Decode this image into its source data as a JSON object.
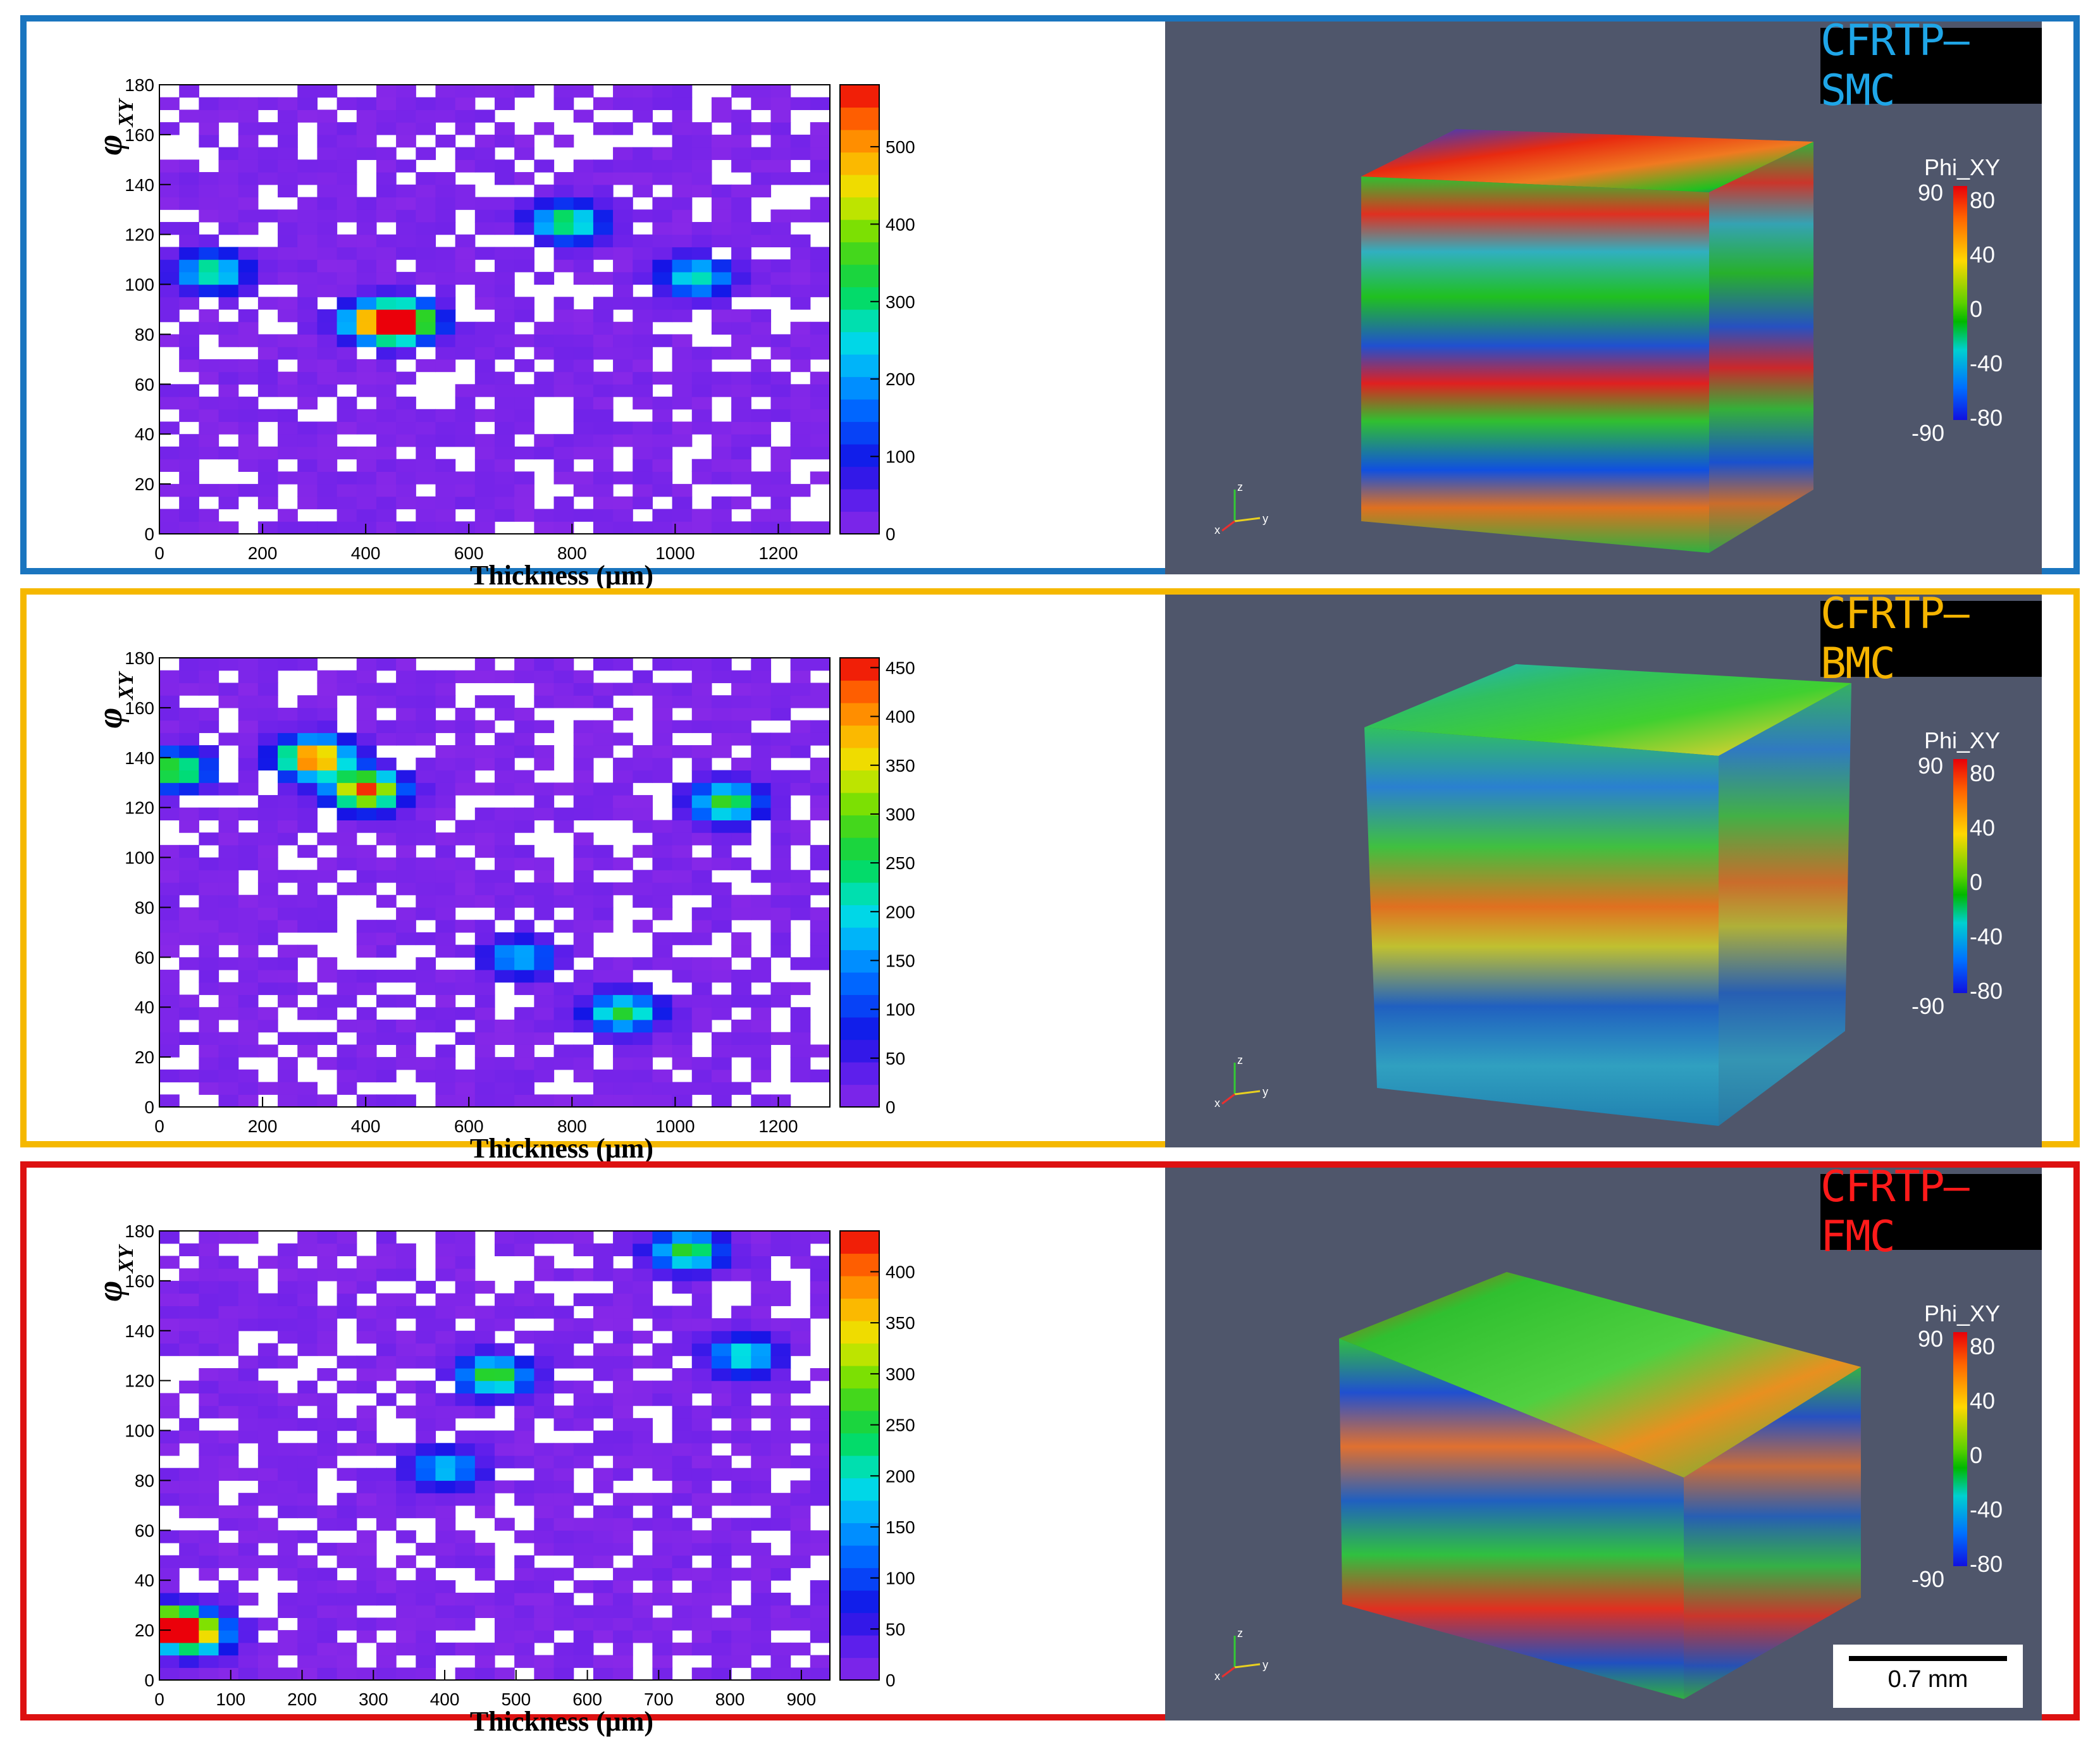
{
  "panels": [
    {
      "id": "smc",
      "title": "CFRTP—SMC",
      "title_color": "#1fa6e8",
      "border_color": "#1a75bf",
      "colorbar": {
        "title": "Phi_XY",
        "max": "90",
        "min": "-90",
        "ticks": [
          "80",
          "40",
          "0",
          "-40",
          "-80"
        ]
      },
      "axis_labels": [
        "z",
        "x",
        "y"
      ]
    },
    {
      "id": "bmc",
      "title": "CFRTP—BMC",
      "title_color": "#f5b400",
      "border_color": "#f5b800",
      "colorbar": {
        "title": "Phi_XY",
        "max": "90",
        "min": "-90",
        "ticks": [
          "80",
          "40",
          "0",
          "-40",
          "-80"
        ]
      },
      "axis_labels": [
        "z",
        "x",
        "y"
      ]
    },
    {
      "id": "fmc",
      "title": "CFRTP—FMC",
      "title_color": "#ff1a1a",
      "border_color": "#dd1111",
      "colorbar": {
        "title": "Phi_XY",
        "max": "90",
        "min": "-90",
        "ticks": [
          "80",
          "40",
          "0",
          "-40",
          "-80"
        ]
      },
      "axis_labels": [
        "z",
        "x",
        "y"
      ],
      "scale_bar": "0.7 mm"
    }
  ],
  "chart_data": [
    {
      "type": "heatmap",
      "xlabel": "Thickness (μm)",
      "ylabel": "φ",
      "ylabel_sub": "XY",
      "xlim": [
        0,
        1300
      ],
      "ylim": [
        0,
        180
      ],
      "x_ticks": [
        0,
        200,
        400,
        600,
        800,
        1000,
        1200
      ],
      "y_ticks": [
        0,
        20,
        40,
        60,
        80,
        100,
        120,
        140,
        160,
        180
      ],
      "z_range": [
        0,
        580
      ],
      "z_ticks": [
        0,
        100,
        200,
        300,
        400,
        500
      ],
      "hotspots": [
        {
          "x": 470,
          "y": 85,
          "value": 560
        },
        {
          "x": 420,
          "y": 85,
          "value": 380
        },
        {
          "x": 790,
          "y": 125,
          "value": 330
        },
        {
          "x": 100,
          "y": 105,
          "value": 300
        },
        {
          "x": 1040,
          "y": 103,
          "value": 280
        },
        {
          "x": 600,
          "y": 195,
          "value": 0
        }
      ]
    },
    {
      "type": "heatmap",
      "xlabel": "Thickness (μm)",
      "ylabel": "φ",
      "ylabel_sub": "XY",
      "xlim": [
        0,
        1300
      ],
      "ylim": [
        0,
        180
      ],
      "x_ticks": [
        0,
        200,
        400,
        600,
        800,
        1000,
        1200
      ],
      "y_ticks": [
        0,
        20,
        40,
        60,
        80,
        100,
        120,
        140,
        160,
        180
      ],
      "z_range": [
        0,
        460
      ],
      "z_ticks": [
        0,
        50,
        100,
        150,
        200,
        250,
        300,
        350,
        400,
        450
      ],
      "hotspots": [
        {
          "x": 300,
          "y": 140,
          "value": 450
        },
        {
          "x": 400,
          "y": 127,
          "value": 440
        },
        {
          "x": 30,
          "y": 135,
          "value": 300
        },
        {
          "x": 1100,
          "y": 122,
          "value": 280
        },
        {
          "x": 700,
          "y": 60,
          "value": 180
        },
        {
          "x": 900,
          "y": 38,
          "value": 260
        }
      ]
    },
    {
      "type": "heatmap",
      "xlabel": "Thickness (μm)",
      "ylabel": "φ",
      "ylabel_sub": "XY",
      "xlim": [
        0,
        940
      ],
      "ylim": [
        0,
        180
      ],
      "x_ticks": [
        0,
        100,
        200,
        300,
        400,
        500,
        600,
        700,
        800,
        900
      ],
      "y_ticks": [
        0,
        20,
        40,
        60,
        80,
        100,
        120,
        140,
        160,
        180
      ],
      "z_range": [
        0,
        440
      ],
      "z_ticks": [
        0,
        50,
        100,
        150,
        200,
        250,
        300,
        350,
        400
      ],
      "hotspots": [
        {
          "x": 15,
          "y": 22,
          "value": 430
        },
        {
          "x": 50,
          "y": 18,
          "value": 300
        },
        {
          "x": 470,
          "y": 122,
          "value": 280
        },
        {
          "x": 740,
          "y": 172,
          "value": 260
        },
        {
          "x": 400,
          "y": 85,
          "value": 180
        },
        {
          "x": 820,
          "y": 130,
          "value": 200
        }
      ]
    }
  ]
}
